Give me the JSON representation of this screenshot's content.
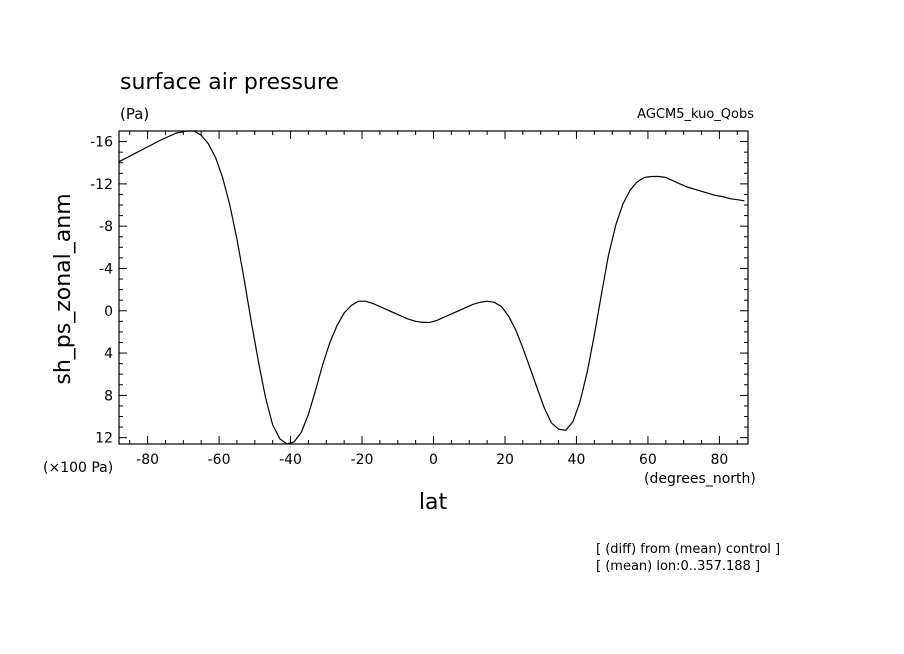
{
  "chart_data": {
    "type": "line",
    "title": "surface air pressure",
    "units": "(Pa)",
    "dataset": "AGCM5_kuo_Qobs",
    "xlabel": "lat",
    "xunits": "(degrees_north)",
    "ylabel": "sh_ps_zonal_anm",
    "yscale_note": "(×100 Pa)",
    "xlim": [
      -88,
      88
    ],
    "ylim": [
      12.6,
      -17
    ],
    "y_inverted": true,
    "x_ticks": [
      -80,
      -60,
      -40,
      -20,
      0,
      20,
      40,
      60,
      80
    ],
    "x_tick_labels": [
      "-80",
      "-60",
      "-40",
      "-20",
      "0",
      "20",
      "40",
      "60",
      "80"
    ],
    "y_ticks": [
      -16,
      -12,
      -8,
      -4,
      0,
      4,
      8,
      12
    ],
    "y_tick_labels": [
      "-16",
      "-12",
      "-8",
      "-4",
      "0",
      "4",
      "8",
      "12"
    ],
    "series": [
      {
        "x": [
          -88,
          -84,
          -80,
          -76,
          -72,
          -69,
          -67,
          -65,
          -63,
          -61,
          -59,
          -57,
          -55,
          -53,
          -51,
          -49,
          -47,
          -45,
          -43,
          -41,
          -39,
          -37,
          -35,
          -33,
          -31,
          -29,
          -27,
          -25,
          -23,
          -21,
          -19,
          -17,
          -15,
          -13,
          -11,
          -9,
          -7,
          -5,
          -3,
          -1,
          1,
          3,
          5,
          7,
          9,
          11,
          13,
          15,
          17,
          19,
          21,
          23,
          25,
          27,
          29,
          31,
          33,
          35,
          37,
          39,
          41,
          43,
          45,
          47,
          49,
          51,
          53,
          55,
          57,
          59,
          61,
          63,
          65,
          67,
          69,
          71,
          73,
          75,
          77,
          79,
          81,
          83,
          85,
          87
        ],
        "y": [
          -14.1,
          -14.8,
          -15.5,
          -16.2,
          -16.8,
          -17.0,
          -17.0,
          -16.6,
          -15.8,
          -14.5,
          -12.6,
          -10.0,
          -6.8,
          -3.0,
          1.0,
          4.8,
          8.2,
          10.8,
          12.1,
          12.6,
          12.4,
          11.5,
          9.8,
          7.5,
          5.1,
          3.0,
          1.4,
          0.2,
          -0.5,
          -0.9,
          -0.9,
          -0.7,
          -0.4,
          -0.1,
          0.2,
          0.5,
          0.8,
          1.0,
          1.1,
          1.1,
          0.9,
          0.6,
          0.3,
          0.0,
          -0.3,
          -0.6,
          -0.8,
          -0.9,
          -0.8,
          -0.4,
          0.5,
          1.8,
          3.5,
          5.4,
          7.3,
          9.2,
          10.6,
          11.2,
          11.3,
          10.5,
          8.6,
          5.8,
          2.3,
          -1.6,
          -5.3,
          -8.1,
          -10.1,
          -11.4,
          -12.2,
          -12.6,
          -12.7,
          -12.7,
          -12.6,
          -12.3,
          -12.0,
          -11.7,
          -11.5,
          -11.3,
          -11.1,
          -10.9,
          -10.8,
          -10.6,
          -10.5,
          -10.4
        ]
      }
    ]
  },
  "footnotes": [
    "[ (diff) from (mean) control ]",
    "[ (mean) lon:0..357.188 ]"
  ]
}
